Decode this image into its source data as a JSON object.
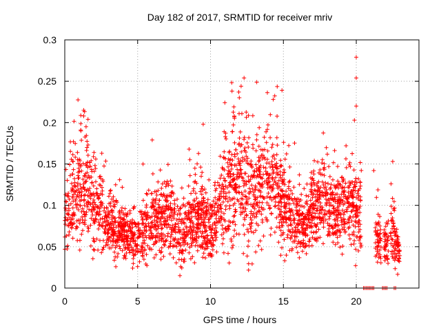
{
  "chart_data": {
    "type": "scatter",
    "title": "Day 182 of 2017, SRMTID for receiver mriv",
    "xlabel": "GPS time / hours",
    "ylabel": "SRMTID / TECUs",
    "xlim": [
      0,
      24.3
    ],
    "ylim": [
      0,
      0.3
    ],
    "xticks": [
      0,
      5,
      10,
      15,
      20
    ],
    "xtick_labels": [
      "0",
      "5",
      "10",
      "15",
      "20"
    ],
    "yticks": [
      0,
      0.05,
      0.1,
      0.15,
      0.2,
      0.25,
      0.3
    ],
    "ytick_labels": [
      "0",
      "0.05",
      "0.1",
      "0.15",
      "0.2",
      "0.25",
      "0.3"
    ],
    "grid": true,
    "marker": "+",
    "series": [
      {
        "name": "SRMTID",
        "color": "#ff0000",
        "profile": [
          {
            "x": 0.0,
            "mean": 0.09,
            "spread": 0.035
          },
          {
            "x": 0.5,
            "mean": 0.11,
            "spread": 0.04
          },
          {
            "x": 1.0,
            "mean": 0.12,
            "spread": 0.045
          },
          {
            "x": 1.5,
            "mean": 0.115,
            "spread": 0.045
          },
          {
            "x": 2.0,
            "mean": 0.1,
            "spread": 0.04
          },
          {
            "x": 2.5,
            "mean": 0.095,
            "spread": 0.035
          },
          {
            "x": 3.0,
            "mean": 0.075,
            "spread": 0.025
          },
          {
            "x": 4.0,
            "mean": 0.065,
            "spread": 0.02
          },
          {
            "x": 5.0,
            "mean": 0.06,
            "spread": 0.02
          },
          {
            "x": 6.0,
            "mean": 0.08,
            "spread": 0.025
          },
          {
            "x": 7.0,
            "mean": 0.085,
            "spread": 0.03
          },
          {
            "x": 8.0,
            "mean": 0.06,
            "spread": 0.025
          },
          {
            "x": 8.7,
            "mean": 0.085,
            "spread": 0.03
          },
          {
            "x": 9.5,
            "mean": 0.08,
            "spread": 0.03
          },
          {
            "x": 10.2,
            "mean": 0.07,
            "spread": 0.025
          },
          {
            "x": 11.0,
            "mean": 0.12,
            "spread": 0.04
          },
          {
            "x": 12.0,
            "mean": 0.13,
            "spread": 0.05
          },
          {
            "x": 13.0,
            "mean": 0.115,
            "spread": 0.04
          },
          {
            "x": 14.0,
            "mean": 0.13,
            "spread": 0.045
          },
          {
            "x": 14.8,
            "mean": 0.11,
            "spread": 0.04
          },
          {
            "x": 15.5,
            "mean": 0.08,
            "spread": 0.025
          },
          {
            "x": 16.5,
            "mean": 0.075,
            "spread": 0.025
          },
          {
            "x": 17.5,
            "mean": 0.1,
            "spread": 0.03
          },
          {
            "x": 18.5,
            "mean": 0.095,
            "spread": 0.03
          },
          {
            "x": 19.5,
            "mean": 0.1,
            "spread": 0.03
          },
          {
            "x": 20.3,
            "mean": 0.09,
            "spread": 0.03
          },
          {
            "x": 20.4,
            "mean": null,
            "spread": 0
          },
          {
            "x": 21.4,
            "mean": 0.06,
            "spread": 0.02
          },
          {
            "x": 22.0,
            "mean": 0.05,
            "spread": 0.015
          },
          {
            "x": 22.5,
            "mean": 0.065,
            "spread": 0.025
          },
          {
            "x": 23.0,
            "mean": 0.04,
            "spread": 0.01
          }
        ],
        "ranges": [
          [
            0.0,
            20.35
          ],
          [
            21.3,
            21.7
          ],
          [
            21.9,
            22.2
          ],
          [
            22.35,
            23.0
          ]
        ],
        "outliers": [
          {
            "x": 20.0,
            "y": 0.279
          },
          {
            "x": 20.0,
            "y": 0.254
          },
          {
            "x": 20.0,
            "y": 0.22
          },
          {
            "x": 12.3,
            "y": 0.254
          },
          {
            "x": 12.1,
            "y": 0.244
          },
          {
            "x": 14.9,
            "y": 0.239
          },
          {
            "x": 14.3,
            "y": 0.228
          },
          {
            "x": 1.3,
            "y": 0.215
          },
          {
            "x": 1.3,
            "y": 0.208
          },
          {
            "x": 11.6,
            "y": 0.219
          },
          {
            "x": 9.5,
            "y": 0.198
          },
          {
            "x": 6.0,
            "y": 0.179
          },
          {
            "x": 19.3,
            "y": 0.172
          },
          {
            "x": 22.5,
            "y": 0.153
          },
          {
            "x": 21.2,
            "y": 0.142
          },
          {
            "x": 7.9,
            "y": 0.015
          }
        ],
        "zeros": [
          20.5,
          20.6,
          20.7,
          20.8,
          20.9,
          21.0,
          21.1,
          21.2,
          21.8,
          21.9,
          22.0,
          22.1,
          22.6,
          22.7
        ]
      }
    ]
  }
}
